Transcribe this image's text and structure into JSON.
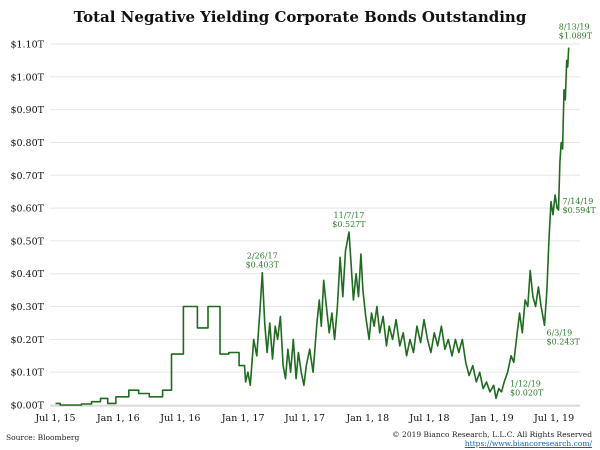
{
  "chart_data": {
    "type": "line",
    "title": "Total Negative Yielding Corporate Bonds Outstanding",
    "xlabel": "",
    "ylabel": "",
    "ylim": [
      0,
      1.1
    ],
    "xlim": [
      "2015-06-15",
      "2019-09-15"
    ],
    "grid": true,
    "line_color": "#1f6b1f",
    "annotation_color": "#2e7d2e",
    "y_ticks": [
      {
        "value": 0.0,
        "label": "$0.00T"
      },
      {
        "value": 0.1,
        "label": "$0.10T"
      },
      {
        "value": 0.2,
        "label": "$0.20T"
      },
      {
        "value": 0.3,
        "label": "$0.30T"
      },
      {
        "value": 0.4,
        "label": "$0.40T"
      },
      {
        "value": 0.5,
        "label": "$0.50T"
      },
      {
        "value": 0.6,
        "label": "$0.60T"
      },
      {
        "value": 0.7,
        "label": "$0.70T"
      },
      {
        "value": 0.8,
        "label": "$0.80T"
      },
      {
        "value": 0.9,
        "label": "$0.90T"
      },
      {
        "value": 1.0,
        "label": "$1.00T"
      },
      {
        "value": 1.1,
        "label": "$1.10T"
      }
    ],
    "x_ticks": [
      {
        "date": "2015-07-01",
        "label": "Jul 1, 15"
      },
      {
        "date": "2016-01-01",
        "label": "Jan 1, 16"
      },
      {
        "date": "2016-07-01",
        "label": "Jul 1, 16"
      },
      {
        "date": "2017-01-01",
        "label": "Jan 1, 17"
      },
      {
        "date": "2017-07-01",
        "label": "Jul 1, 17"
      },
      {
        "date": "2018-01-01",
        "label": "Jan 1, 18"
      },
      {
        "date": "2018-07-01",
        "label": "Jul 1, 18"
      },
      {
        "date": "2019-01-01",
        "label": "Jan 1, 19"
      },
      {
        "date": "2019-07-01",
        "label": "Jul 1, 19"
      }
    ],
    "points": [
      [
        "2015-07-01",
        0.005
      ],
      [
        "2015-07-15",
        0.005
      ],
      [
        "2015-07-15",
        0.0
      ],
      [
        "2015-09-15",
        0.0
      ],
      [
        "2015-09-15",
        0.003
      ],
      [
        "2015-10-15",
        0.003
      ],
      [
        "2015-10-15",
        0.01
      ],
      [
        "2015-11-10",
        0.01
      ],
      [
        "2015-11-10",
        0.02
      ],
      [
        "2015-12-01",
        0.02
      ],
      [
        "2015-12-01",
        0.005
      ],
      [
        "2015-12-25",
        0.005
      ],
      [
        "2015-12-25",
        0.025
      ],
      [
        "2016-02-01",
        0.025
      ],
      [
        "2016-02-01",
        0.045
      ],
      [
        "2016-03-01",
        0.045
      ],
      [
        "2016-03-01",
        0.035
      ],
      [
        "2016-04-01",
        0.035
      ],
      [
        "2016-04-01",
        0.025
      ],
      [
        "2016-05-10",
        0.025
      ],
      [
        "2016-05-10",
        0.045
      ],
      [
        "2016-06-05",
        0.045
      ],
      [
        "2016-06-05",
        0.155
      ],
      [
        "2016-07-10",
        0.155
      ],
      [
        "2016-07-10",
        0.3
      ],
      [
        "2016-08-20",
        0.3
      ],
      [
        "2016-08-20",
        0.235
      ],
      [
        "2016-09-20",
        0.235
      ],
      [
        "2016-09-20",
        0.3
      ],
      [
        "2016-10-25",
        0.3
      ],
      [
        "2016-10-25",
        0.155
      ],
      [
        "2016-11-20",
        0.155
      ],
      [
        "2016-11-20",
        0.16
      ],
      [
        "2016-12-20",
        0.16
      ],
      [
        "2016-12-20",
        0.12
      ],
      [
        "2017-01-05",
        0.12
      ],
      [
        "2017-01-08",
        0.07
      ],
      [
        "2017-01-15",
        0.1
      ],
      [
        "2017-01-22",
        0.06
      ],
      [
        "2017-02-01",
        0.2
      ],
      [
        "2017-02-10",
        0.15
      ],
      [
        "2017-02-20",
        0.3
      ],
      [
        "2017-02-26",
        0.403
      ],
      [
        "2017-03-05",
        0.25
      ],
      [
        "2017-03-12",
        0.16
      ],
      [
        "2017-03-20",
        0.25
      ],
      [
        "2017-03-28",
        0.14
      ],
      [
        "2017-04-05",
        0.24
      ],
      [
        "2017-04-12",
        0.2
      ],
      [
        "2017-04-20",
        0.27
      ],
      [
        "2017-04-28",
        0.12
      ],
      [
        "2017-05-05",
        0.08
      ],
      [
        "2017-05-12",
        0.17
      ],
      [
        "2017-05-20",
        0.1
      ],
      [
        "2017-05-28",
        0.2
      ],
      [
        "2017-06-05",
        0.08
      ],
      [
        "2017-06-12",
        0.16
      ],
      [
        "2017-06-20",
        0.1
      ],
      [
        "2017-06-28",
        0.06
      ],
      [
        "2017-07-05",
        0.12
      ],
      [
        "2017-07-15",
        0.17
      ],
      [
        "2017-07-25",
        0.1
      ],
      [
        "2017-08-05",
        0.25
      ],
      [
        "2017-08-12",
        0.32
      ],
      [
        "2017-08-18",
        0.24
      ],
      [
        "2017-08-25",
        0.38
      ],
      [
        "2017-09-02",
        0.3
      ],
      [
        "2017-09-10",
        0.22
      ],
      [
        "2017-09-18",
        0.28
      ],
      [
        "2017-09-26",
        0.2
      ],
      [
        "2017-10-04",
        0.3
      ],
      [
        "2017-10-12",
        0.45
      ],
      [
        "2017-10-20",
        0.33
      ],
      [
        "2017-10-28",
        0.47
      ],
      [
        "2017-11-07",
        0.527
      ],
      [
        "2017-11-14",
        0.42
      ],
      [
        "2017-11-20",
        0.32
      ],
      [
        "2017-11-28",
        0.4
      ],
      [
        "2017-12-05",
        0.33
      ],
      [
        "2017-12-12",
        0.46
      ],
      [
        "2017-12-18",
        0.35
      ],
      [
        "2017-12-26",
        0.27
      ],
      [
        "2018-01-05",
        0.2
      ],
      [
        "2018-01-12",
        0.28
      ],
      [
        "2018-01-20",
        0.24
      ],
      [
        "2018-01-28",
        0.3
      ],
      [
        "2018-02-05",
        0.22
      ],
      [
        "2018-02-15",
        0.27
      ],
      [
        "2018-02-25",
        0.18
      ],
      [
        "2018-03-05",
        0.24
      ],
      [
        "2018-03-15",
        0.2
      ],
      [
        "2018-03-25",
        0.26
      ],
      [
        "2018-04-05",
        0.18
      ],
      [
        "2018-04-15",
        0.22
      ],
      [
        "2018-04-25",
        0.15
      ],
      [
        "2018-05-05",
        0.2
      ],
      [
        "2018-05-15",
        0.16
      ],
      [
        "2018-05-25",
        0.24
      ],
      [
        "2018-06-05",
        0.19
      ],
      [
        "2018-06-15",
        0.26
      ],
      [
        "2018-06-25",
        0.2
      ],
      [
        "2018-07-05",
        0.16
      ],
      [
        "2018-07-15",
        0.22
      ],
      [
        "2018-07-25",
        0.18
      ],
      [
        "2018-08-05",
        0.24
      ],
      [
        "2018-08-15",
        0.17
      ],
      [
        "2018-08-25",
        0.2
      ],
      [
        "2018-09-05",
        0.15
      ],
      [
        "2018-09-15",
        0.2
      ],
      [
        "2018-09-25",
        0.16
      ],
      [
        "2018-10-05",
        0.2
      ],
      [
        "2018-10-15",
        0.13
      ],
      [
        "2018-10-25",
        0.09
      ],
      [
        "2018-11-05",
        0.12
      ],
      [
        "2018-11-15",
        0.07
      ],
      [
        "2018-11-25",
        0.1
      ],
      [
        "2018-12-05",
        0.05
      ],
      [
        "2018-12-15",
        0.07
      ],
      [
        "2018-12-25",
        0.04
      ],
      [
        "2019-01-05",
        0.06
      ],
      [
        "2019-01-12",
        0.02
      ],
      [
        "2019-01-20",
        0.05
      ],
      [
        "2019-01-28",
        0.04
      ],
      [
        "2019-02-05",
        0.07
      ],
      [
        "2019-02-15",
        0.1
      ],
      [
        "2019-02-25",
        0.15
      ],
      [
        "2019-03-05",
        0.13
      ],
      [
        "2019-03-15",
        0.22
      ],
      [
        "2019-03-22",
        0.28
      ],
      [
        "2019-03-30",
        0.22
      ],
      [
        "2019-04-07",
        0.32
      ],
      [
        "2019-04-15",
        0.3
      ],
      [
        "2019-04-22",
        0.41
      ],
      [
        "2019-04-30",
        0.33
      ],
      [
        "2019-05-08",
        0.3
      ],
      [
        "2019-05-16",
        0.36
      ],
      [
        "2019-05-24",
        0.3
      ],
      [
        "2019-06-03",
        0.243
      ],
      [
        "2019-06-10",
        0.35
      ],
      [
        "2019-06-16",
        0.5
      ],
      [
        "2019-06-22",
        0.62
      ],
      [
        "2019-06-28",
        0.58
      ],
      [
        "2019-07-04",
        0.64
      ],
      [
        "2019-07-10",
        0.6
      ],
      [
        "2019-07-14",
        0.594
      ],
      [
        "2019-07-18",
        0.74
      ],
      [
        "2019-07-22",
        0.8
      ],
      [
        "2019-07-26",
        0.78
      ],
      [
        "2019-07-30",
        0.96
      ],
      [
        "2019-08-03",
        0.93
      ],
      [
        "2019-08-07",
        1.05
      ],
      [
        "2019-08-10",
        1.03
      ],
      [
        "2019-08-13",
        1.089
      ]
    ],
    "annotations": [
      {
        "date": "2017-02-26",
        "value": 0.403,
        "date_label": "2/26/17",
        "value_label": "$0.403T"
      },
      {
        "date": "2017-11-07",
        "value": 0.527,
        "date_label": "11/7/17",
        "value_label": "$0.527T"
      },
      {
        "date": "2019-01-12",
        "value": 0.02,
        "date_label": "1/12/19",
        "value_label": "$0.020T"
      },
      {
        "date": "2019-06-03",
        "value": 0.243,
        "date_label": "6/3/19",
        "value_label": "$0.243T"
      },
      {
        "date": "2019-07-14",
        "value": 0.594,
        "date_label": "7/14/19",
        "value_label": "$0.594T"
      },
      {
        "date": "2019-08-13",
        "value": 1.089,
        "date_label": "8/13/19",
        "value_label": "$1.089T"
      }
    ]
  },
  "footer": {
    "source": "Source: Bloomberg",
    "copyright": "© 2019 Bianco Research, L.L.C. All Rights Reserved",
    "url": "https://www.biancoresearch.com/"
  }
}
